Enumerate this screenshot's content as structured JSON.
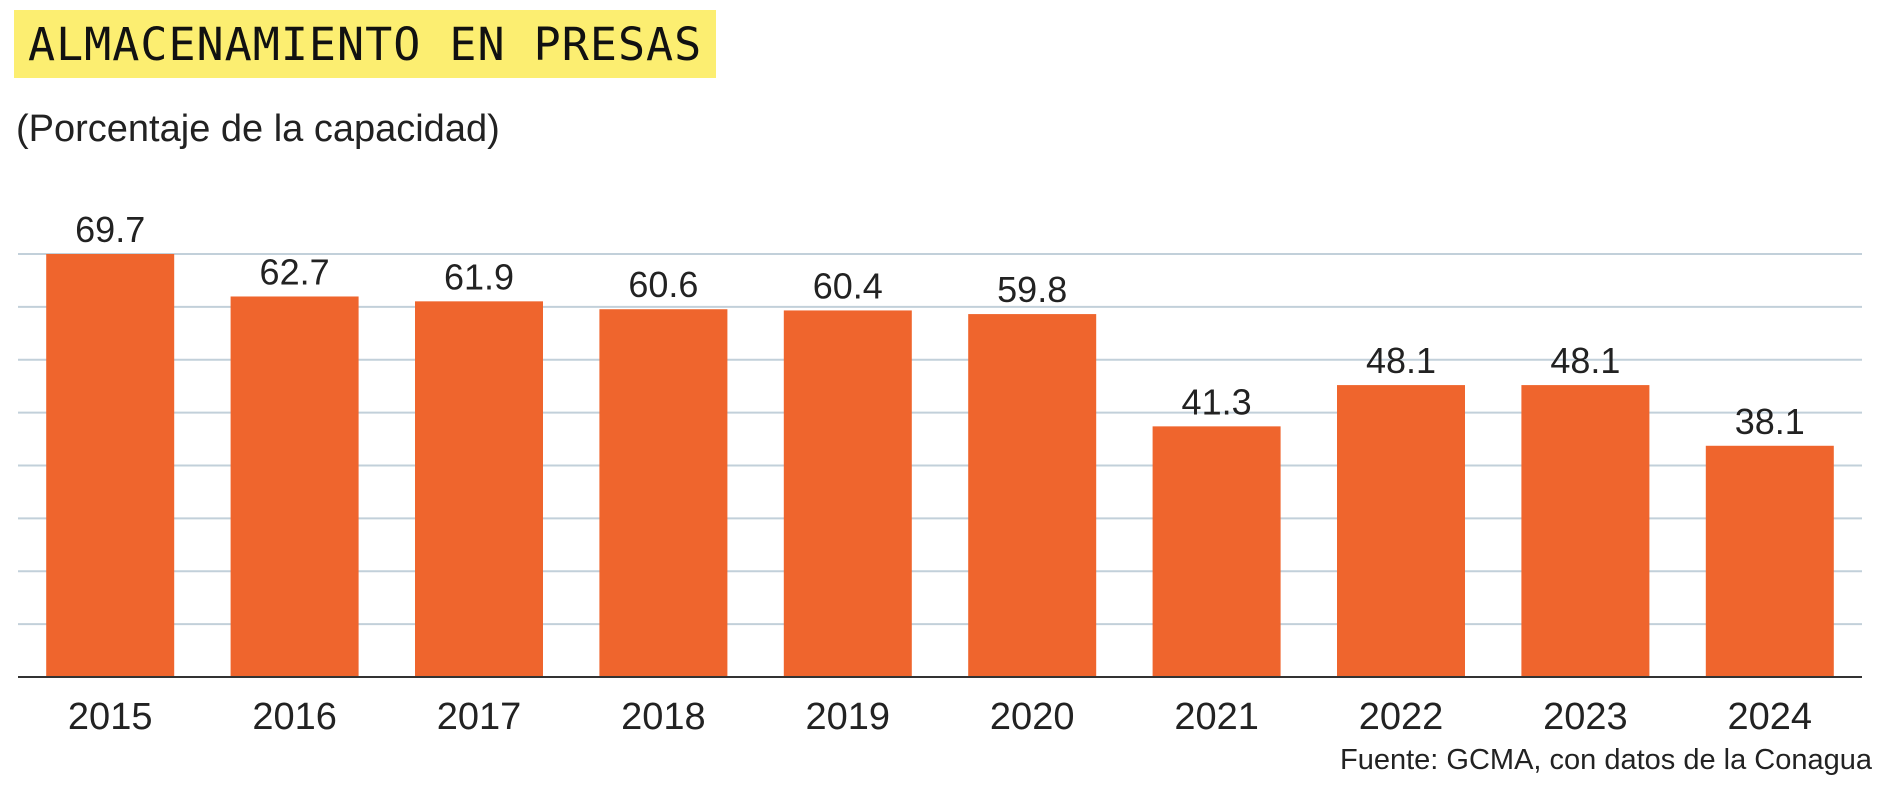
{
  "colors": {
    "bar": "#EF652D",
    "title_highlight": "#FCEE71",
    "gridline": "#C2D0DA",
    "axis": "#333333",
    "text": "#222222"
  },
  "footer": {
    "source": "Fuente: GCMA, con datos de la Conagua"
  },
  "chart_data": {
    "type": "bar",
    "title": "ALMACENAMIENTO EN PRESAS",
    "subtitle": "(Porcentaje de la capacidad)",
    "categories": [
      "2015",
      "2016",
      "2017",
      "2018",
      "2019",
      "2020",
      "2021",
      "2022",
      "2023",
      "2024"
    ],
    "values": [
      69.7,
      62.7,
      61.9,
      60.6,
      60.4,
      59.8,
      41.3,
      48.1,
      48.1,
      38.1
    ],
    "data_labels": [
      "69.7",
      "62.7",
      "61.9",
      "60.6",
      "60.4",
      "59.8",
      "41.3",
      "48.1",
      "48.1",
      "38.1"
    ],
    "xlabel": "",
    "ylabel": "",
    "ylim": [
      0,
      69.7
    ],
    "grid": true,
    "gridline_count": 8,
    "legend": "none"
  }
}
